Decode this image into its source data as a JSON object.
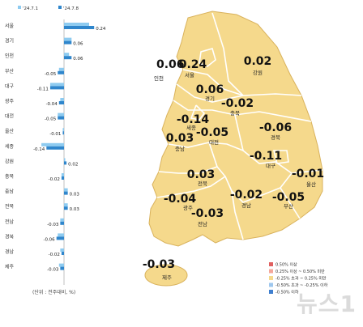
{
  "chart_data": [
    {
      "type": "bar",
      "orientation": "horizontal",
      "legend": {
        "position": "top-left"
      },
      "categories": [
        "서울",
        "경기",
        "인천",
        "부산",
        "대구",
        "광주",
        "대전",
        "울산",
        "세종",
        "강원",
        "충북",
        "충남",
        "전북",
        "전남",
        "경북",
        "경남",
        "제주"
      ],
      "series": [
        {
          "name": "'24.7.1",
          "color": "#8ecbf0",
          "values": [
            0.2,
            0.06,
            0.04,
            -0.04,
            -0.11,
            -0.03,
            -0.05,
            -0.01,
            -0.18,
            0.01,
            -0.02,
            0.03,
            0.03,
            -0.03,
            -0.05,
            -0.03,
            -0.04
          ]
        },
        {
          "name": "'24.7.8",
          "color": "#2f86cc",
          "values": [
            0.24,
            0.06,
            0.06,
            -0.05,
            -0.11,
            -0.04,
            -0.05,
            -0.01,
            -0.14,
            0.02,
            -0.02,
            0.03,
            0.03,
            -0.03,
            -0.06,
            -0.02,
            -0.03
          ]
        }
      ],
      "data_labels": [
        "0.24",
        "0.06",
        "0.06",
        "-0.05",
        "-0.11",
        "-0.04",
        "-0.05",
        "-0.01",
        "-0.14",
        "0.02",
        "-0.02",
        "0.03",
        "0.03",
        "-0.03",
        "-0.06",
        "-0.02",
        "-0.03"
      ],
      "unit_note": "(단위 : 전주대비, %)"
    },
    {
      "type": "choropleth",
      "regions": [
        {
          "name": "인천",
          "value": "0.06"
        },
        {
          "name": "서울",
          "value": "0.24"
        },
        {
          "name": "강원",
          "value": "0.02"
        },
        {
          "name": "경기",
          "value": "0.06"
        },
        {
          "name": "충북",
          "value": "-0.02"
        },
        {
          "name": "세종",
          "value": "-0.14"
        },
        {
          "name": "대전",
          "value": "-0.05"
        },
        {
          "name": "충남",
          "value": "0.03"
        },
        {
          "name": "경북",
          "value": "-0.06"
        },
        {
          "name": "대구",
          "value": "-0.11"
        },
        {
          "name": "전북",
          "value": "0.03"
        },
        {
          "name": "울산",
          "value": "-0.01"
        },
        {
          "name": "광주",
          "value": "-0.04"
        },
        {
          "name": "경남",
          "value": "-0.02"
        },
        {
          "name": "부산",
          "value": "-0.05"
        },
        {
          "name": "전남",
          "value": "-0.03"
        },
        {
          "name": "제주",
          "value": "-0.03"
        }
      ],
      "fill_color": "#f5d98c",
      "legend": {
        "position": "bottom-right",
        "items": [
          {
            "label": "0.50% 이상",
            "color": "#e06060"
          },
          {
            "label": "0.25% 이상 ~ 0.50% 미만",
            "color": "#f4a79a"
          },
          {
            "label": "-0.25% 초과 ~ 0.25% 미만",
            "color": "#f5d98c"
          },
          {
            "label": "-0.50% 초과 ~ -0.25% 이하",
            "color": "#9ec7ee"
          },
          {
            "label": "-0.50% 이하",
            "color": "#3f7fcf"
          }
        ]
      }
    }
  ],
  "watermark": "뉴스1"
}
